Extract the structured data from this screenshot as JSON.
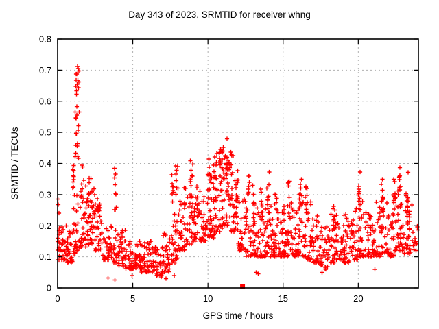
{
  "chart_data": {
    "type": "scatter",
    "title": "Day 343 of 2023, SRMTID for receiver whng",
    "xlabel": "GPS time / hours",
    "ylabel": "SRMTID / TECUs",
    "xlim": [
      0,
      24
    ],
    "ylim": [
      0,
      0.8
    ],
    "xtick_values": [
      0,
      5,
      10,
      15,
      20
    ],
    "xtick_labels": [
      "0",
      "5",
      "10",
      "15",
      "20"
    ],
    "ytick_values": [
      0,
      0.1,
      0.2,
      0.3,
      0.4,
      0.5,
      0.6,
      0.7,
      0.8
    ],
    "ytick_labels": [
      "0",
      "0.1",
      "0.2",
      "0.3",
      "0.4",
      "0.5",
      "0.6",
      "0.7",
      "0.8"
    ],
    "grid": true,
    "legend": "none",
    "marker": "plus",
    "colors": {
      "points": "#ff0000",
      "grid": "#b0b0b0",
      "border": "#000000",
      "background": "#ffffff",
      "text": "#000000"
    },
    "seed": 42,
    "band_width": 0.5,
    "bands_note": "Dense 30s-cadence noise band, per 0.5h bin: [x_start, y_min, y_max, n_points]; bottom-weighted",
    "bands": [
      [
        0.0,
        0.09,
        0.22,
        34
      ],
      [
        0.5,
        0.08,
        0.2,
        30
      ],
      [
        1.0,
        0.11,
        0.3,
        28
      ],
      [
        1.5,
        0.13,
        0.33,
        30
      ],
      [
        2.0,
        0.14,
        0.32,
        32
      ],
      [
        2.5,
        0.12,
        0.3,
        30
      ],
      [
        3.0,
        0.09,
        0.2,
        30
      ],
      [
        3.5,
        0.08,
        0.2,
        28
      ],
      [
        4.0,
        0.07,
        0.19,
        32
      ],
      [
        4.5,
        0.06,
        0.17,
        30
      ],
      [
        5.0,
        0.06,
        0.16,
        30
      ],
      [
        5.5,
        0.05,
        0.15,
        30
      ],
      [
        6.0,
        0.05,
        0.15,
        30
      ],
      [
        6.5,
        0.04,
        0.14,
        30
      ],
      [
        7.0,
        0.05,
        0.18,
        30
      ],
      [
        7.5,
        0.08,
        0.24,
        28
      ],
      [
        8.0,
        0.12,
        0.28,
        30
      ],
      [
        8.5,
        0.14,
        0.3,
        28
      ],
      [
        9.0,
        0.15,
        0.32,
        28
      ],
      [
        9.5,
        0.15,
        0.3,
        28
      ],
      [
        10.0,
        0.16,
        0.34,
        26
      ],
      [
        10.5,
        0.18,
        0.36,
        24
      ],
      [
        11.0,
        0.2,
        0.38,
        22
      ],
      [
        11.5,
        0.18,
        0.36,
        24
      ],
      [
        12.0,
        0.12,
        0.3,
        28
      ],
      [
        12.5,
        0.1,
        0.26,
        30
      ],
      [
        13.0,
        0.1,
        0.26,
        30
      ],
      [
        13.5,
        0.1,
        0.27,
        30
      ],
      [
        14.0,
        0.1,
        0.28,
        30
      ],
      [
        14.5,
        0.1,
        0.26,
        30
      ],
      [
        15.0,
        0.1,
        0.27,
        30
      ],
      [
        15.5,
        0.1,
        0.28,
        30
      ],
      [
        16.0,
        0.1,
        0.3,
        30
      ],
      [
        16.5,
        0.09,
        0.28,
        30
      ],
      [
        17.0,
        0.08,
        0.24,
        30
      ],
      [
        17.5,
        0.06,
        0.2,
        30
      ],
      [
        18.0,
        0.08,
        0.24,
        30
      ],
      [
        18.5,
        0.09,
        0.25,
        30
      ],
      [
        19.0,
        0.08,
        0.24,
        30
      ],
      [
        19.5,
        0.09,
        0.26,
        30
      ],
      [
        20.0,
        0.1,
        0.28,
        30
      ],
      [
        20.5,
        0.1,
        0.26,
        30
      ],
      [
        21.0,
        0.1,
        0.28,
        30
      ],
      [
        21.5,
        0.11,
        0.3,
        30
      ],
      [
        22.0,
        0.1,
        0.3,
        30
      ],
      [
        22.5,
        0.12,
        0.32,
        30
      ],
      [
        23.0,
        0.11,
        0.32,
        30
      ],
      [
        23.5,
        0.12,
        0.28,
        14
      ]
    ],
    "clusters_note": "TID activity spikes/columns: [x_center, x_halfwidth, y_min, y_max, n_points]; uniform",
    "clusters": [
      [
        1.25,
        0.15,
        0.4,
        0.715,
        26
      ],
      [
        1.05,
        0.1,
        0.3,
        0.4,
        10
      ],
      [
        1.6,
        0.12,
        0.25,
        0.4,
        10
      ],
      [
        2.1,
        0.12,
        0.2,
        0.36,
        12
      ],
      [
        2.45,
        0.1,
        0.2,
        0.33,
        8
      ],
      [
        3.85,
        0.06,
        0.23,
        0.4,
        9
      ],
      [
        7.65,
        0.08,
        0.24,
        0.38,
        8
      ],
      [
        7.95,
        0.08,
        0.28,
        0.4,
        8
      ],
      [
        8.45,
        0.07,
        0.22,
        0.34,
        6
      ],
      [
        8.9,
        0.1,
        0.26,
        0.41,
        10
      ],
      [
        9.3,
        0.07,
        0.22,
        0.33,
        6
      ],
      [
        10.1,
        0.12,
        0.26,
        0.42,
        12
      ],
      [
        10.5,
        0.15,
        0.28,
        0.44,
        16
      ],
      [
        10.9,
        0.15,
        0.3,
        0.47,
        20
      ],
      [
        11.25,
        0.12,
        0.3,
        0.48,
        20
      ],
      [
        11.55,
        0.12,
        0.26,
        0.45,
        14
      ],
      [
        11.9,
        0.08,
        0.18,
        0.4,
        10
      ],
      [
        12.7,
        0.07,
        0.26,
        0.37,
        8
      ],
      [
        13.05,
        0.06,
        0.24,
        0.35,
        7
      ],
      [
        13.55,
        0.06,
        0.24,
        0.35,
        7
      ],
      [
        14.0,
        0.09,
        0.24,
        0.38,
        9
      ],
      [
        14.5,
        0.07,
        0.22,
        0.32,
        6
      ],
      [
        15.35,
        0.08,
        0.23,
        0.35,
        8
      ],
      [
        16.15,
        0.1,
        0.24,
        0.36,
        10
      ],
      [
        16.55,
        0.08,
        0.22,
        0.33,
        7
      ],
      [
        18.35,
        0.08,
        0.18,
        0.28,
        7
      ],
      [
        20.05,
        0.09,
        0.24,
        0.39,
        10
      ],
      [
        21.6,
        0.09,
        0.22,
        0.35,
        8
      ],
      [
        22.4,
        0.09,
        0.22,
        0.36,
        8
      ],
      [
        22.75,
        0.06,
        0.26,
        0.4,
        8
      ],
      [
        23.3,
        0.09,
        0.18,
        0.38,
        10
      ]
    ],
    "outliers_note": "Individually readable extreme points [x, y]",
    "outliers": [
      [
        0.02,
        0.285
      ],
      [
        0.05,
        0.268
      ],
      [
        0.08,
        0.24
      ],
      [
        1.32,
        0.712
      ],
      [
        1.38,
        0.705
      ],
      [
        1.42,
        0.697
      ],
      [
        1.35,
        0.668
      ],
      [
        1.4,
        0.643
      ],
      [
        3.35,
        0.032
      ],
      [
        3.8,
        0.025
      ],
      [
        4.95,
        0.04
      ],
      [
        6.9,
        0.035
      ],
      [
        7.2,
        0.03
      ],
      [
        7.75,
        0.04
      ],
      [
        13.2,
        0.05
      ],
      [
        13.35,
        0.045
      ],
      [
        17.6,
        0.05
      ],
      [
        21.1,
        0.06
      ]
    ],
    "square_marker_note": "Filled red square sitting on the x-axis",
    "square_marker": {
      "x": 12.3,
      "y": 0
    }
  }
}
